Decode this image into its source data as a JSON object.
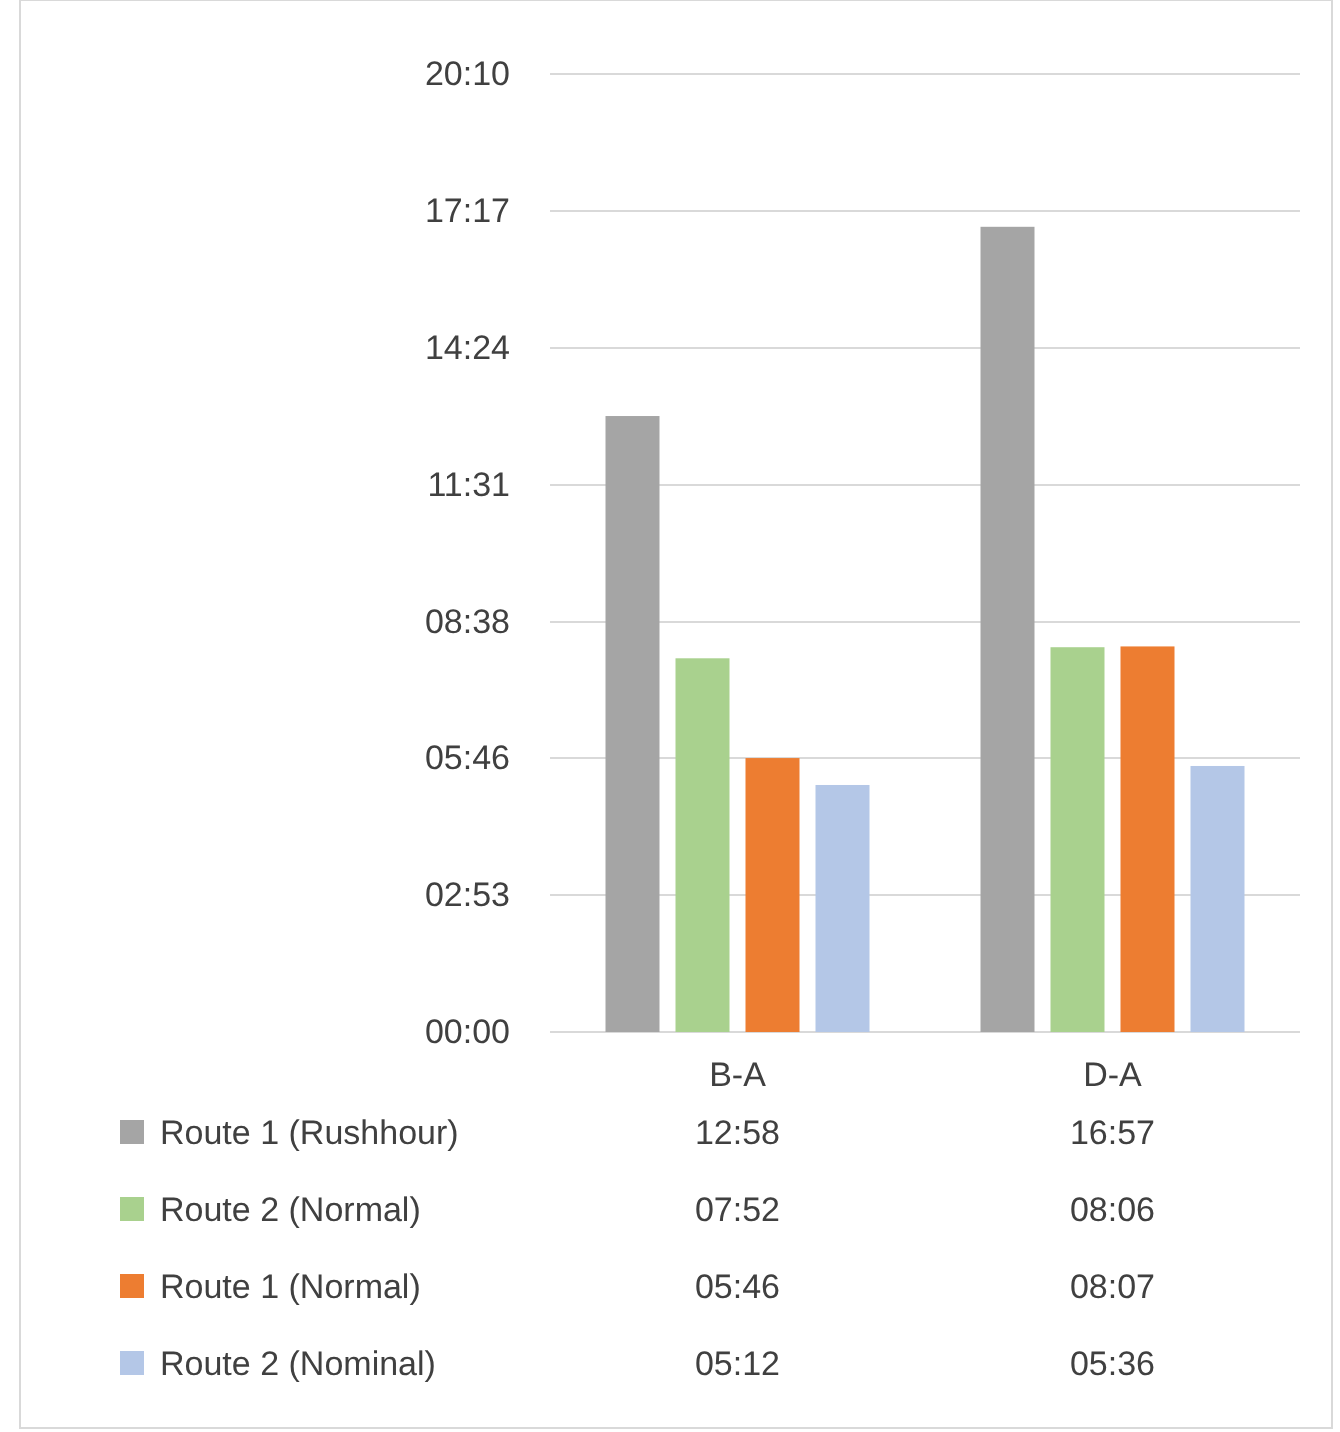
{
  "chart_data": {
    "type": "bar",
    "categories": [
      "B-A",
      "D-A"
    ],
    "series": [
      {
        "name": "Route 1 (Rushhour)",
        "color": "#a5a5a5",
        "values": [
          12.9667,
          16.95
        ],
        "value_labels": [
          "12:58",
          "16:57"
        ]
      },
      {
        "name": "Route 2 (Normal)",
        "color": "#a9d18e",
        "values": [
          7.8667,
          8.1
        ],
        "value_labels": [
          "07:52",
          "08:06"
        ]
      },
      {
        "name": "Route 1 (Normal)",
        "color": "#ed7d31",
        "values": [
          5.7667,
          8.1167
        ],
        "value_labels": [
          "05:46",
          "08:07"
        ]
      },
      {
        "name": "Route 2 (Nominal)",
        "color": "#b4c7e7",
        "values": [
          5.2,
          5.6
        ],
        "value_labels": [
          "05:12",
          "05:36"
        ]
      }
    ],
    "ylim": [
      0,
      20.1667
    ],
    "yticks": [
      {
        "value": 0,
        "label": "00:00"
      },
      {
        "value": 2.8833,
        "label": "02:53"
      },
      {
        "value": 5.7667,
        "label": "05:46"
      },
      {
        "value": 8.6333,
        "label": "08:38"
      },
      {
        "value": 11.5167,
        "label": "11:31"
      },
      {
        "value": 14.4,
        "label": "14:24"
      },
      {
        "value": 17.2833,
        "label": "17:17"
      },
      {
        "value": 20.1667,
        "label": "20:10"
      }
    ],
    "grid": "y",
    "legend": "bottom"
  }
}
